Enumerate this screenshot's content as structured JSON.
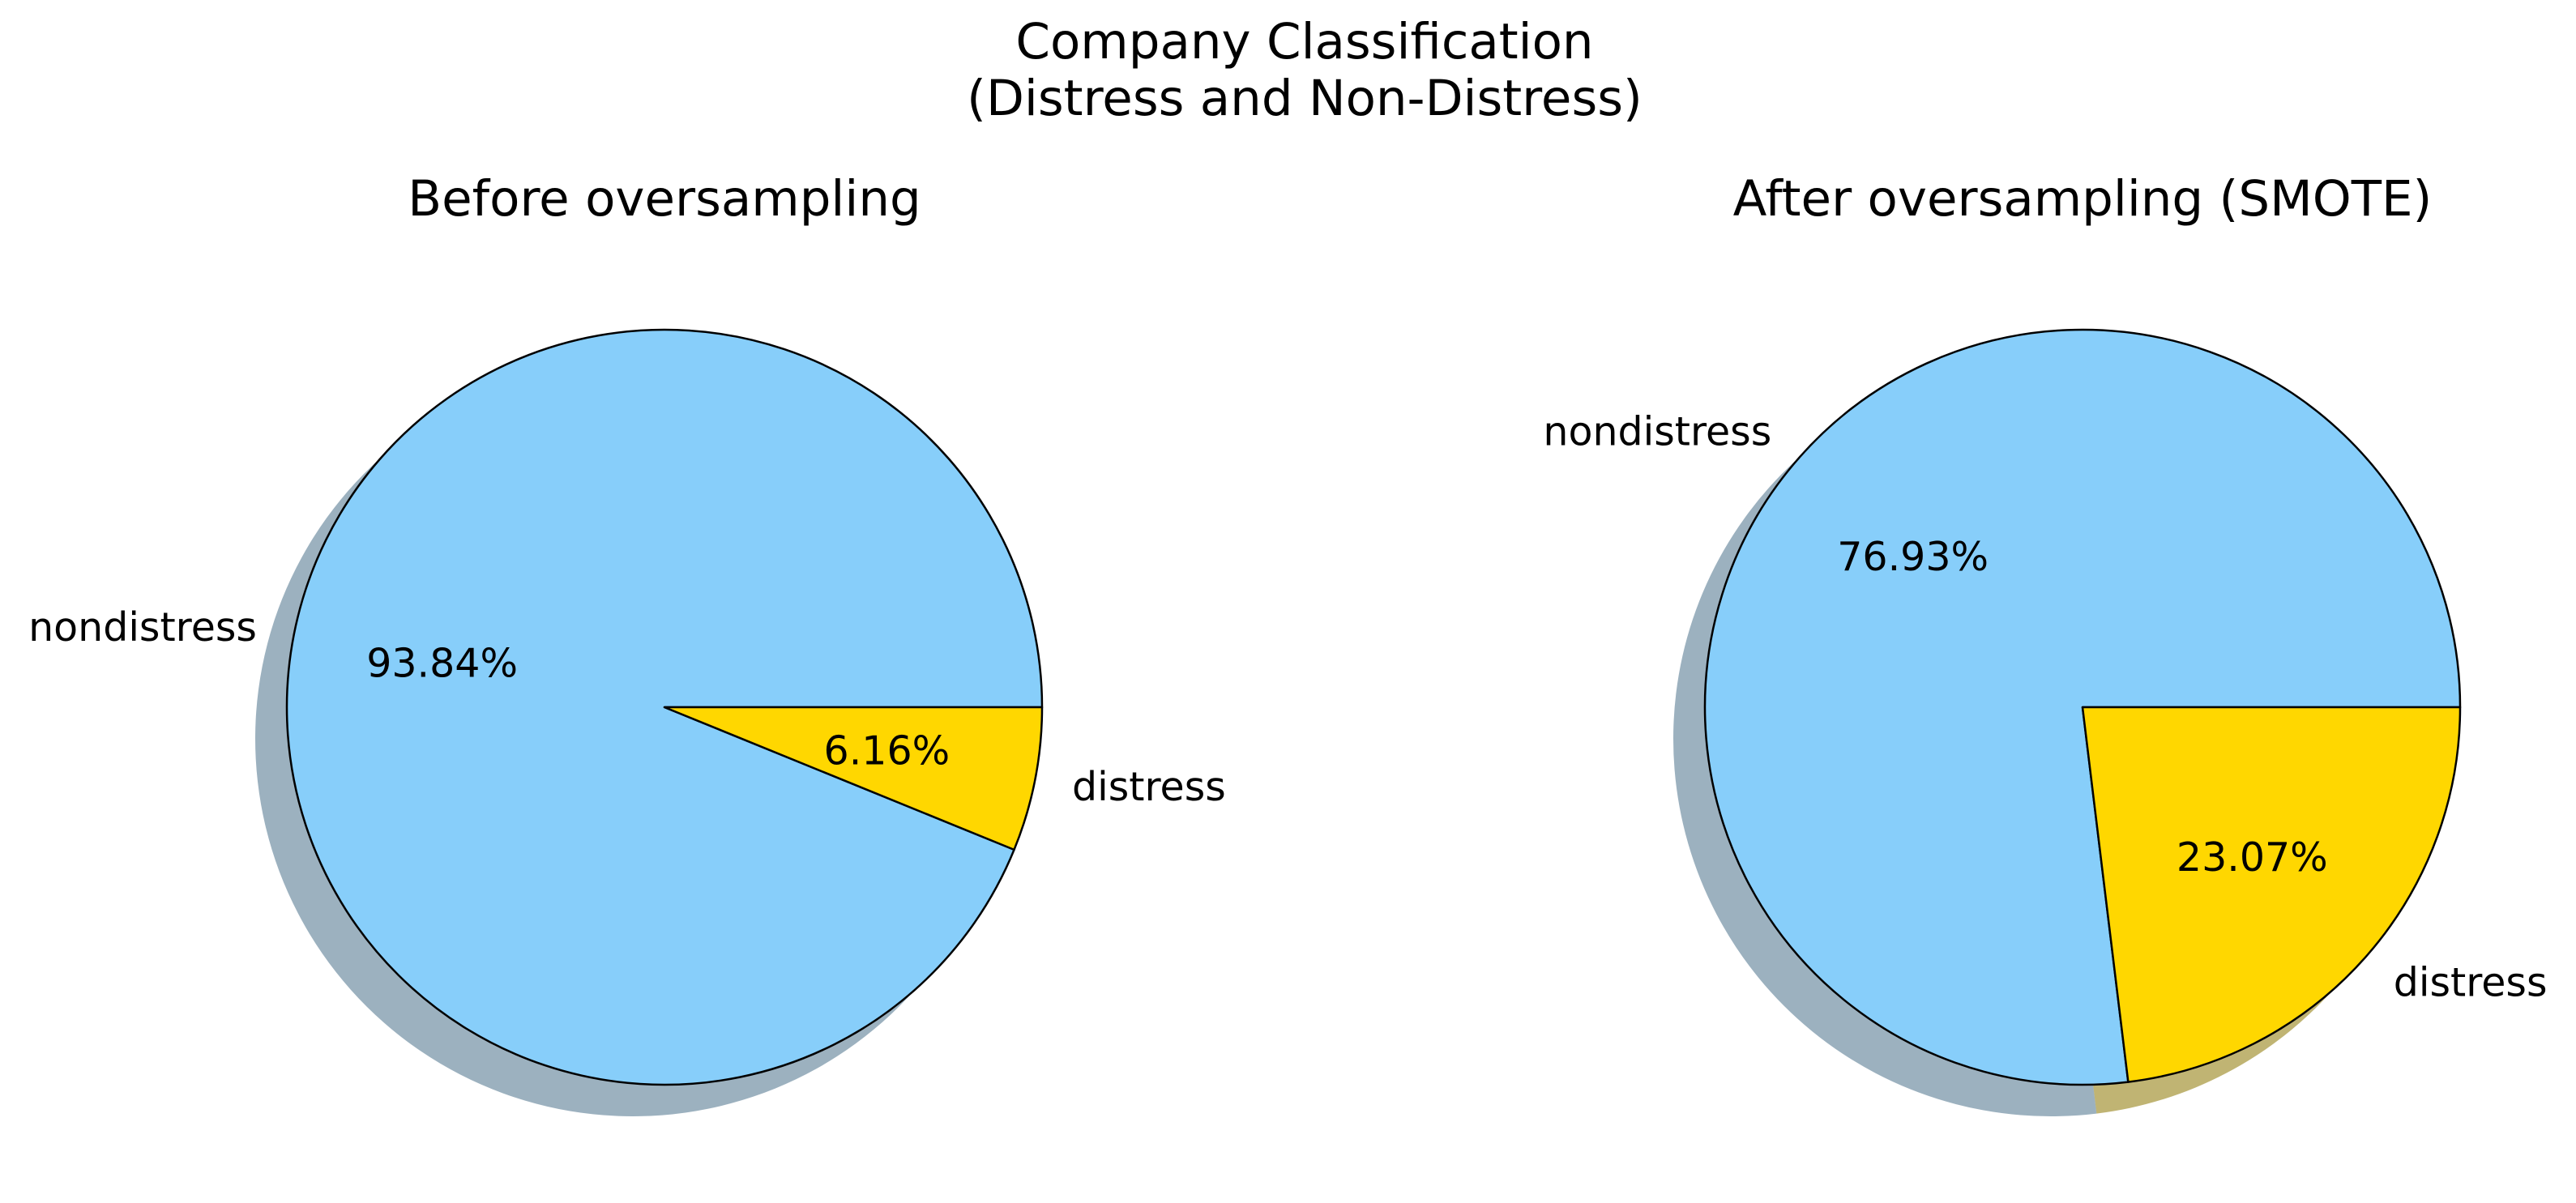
{
  "figure": {
    "title_line1": "Company Classification",
    "title_line2": "(Distress and Non-Distress)"
  },
  "colors": {
    "nondistress": "#87CEFA",
    "distress": "#FFD700",
    "shadow": "#939EA6",
    "edge": "#000000"
  },
  "chart_data": [
    {
      "type": "pie",
      "title": "Before oversampling",
      "categories": [
        "nondistress",
        "distress"
      ],
      "values": [
        93.84,
        6.16
      ],
      "labels": [
        "93.84%",
        "6.16%"
      ],
      "start_angle": 0,
      "direction": "counterclockwise",
      "shadow": true
    },
    {
      "type": "pie",
      "title": "After oversampling (SMOTE)",
      "categories": [
        "nondistress",
        "distress"
      ],
      "values": [
        76.93,
        23.07
      ],
      "labels": [
        "76.93%",
        "23.07%"
      ],
      "start_angle": 0,
      "direction": "counterclockwise",
      "shadow": true
    }
  ]
}
